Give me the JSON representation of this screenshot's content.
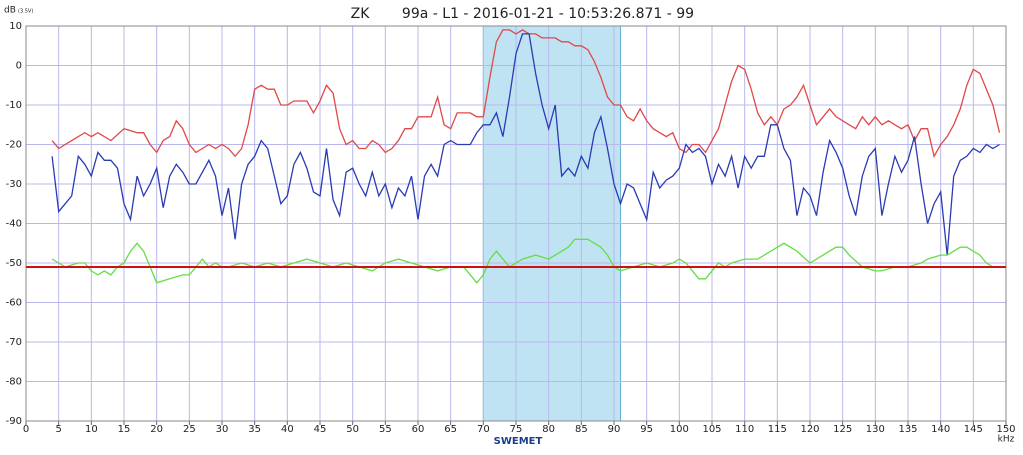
{
  "chart_data": {
    "type": "line",
    "title": "ZK",
    "subtitle": "99a - L1 - 2016-01-21  - 10:53:26.871 - 99",
    "ylabel": "dB",
    "ylabel_note": "(3.5V)",
    "xlabel": "kHz",
    "logo": "SWEMET",
    "xlim": [
      0,
      150
    ],
    "ylim": [
      -90,
      10
    ],
    "xticks": [
      0,
      5,
      10,
      15,
      20,
      25,
      30,
      35,
      40,
      45,
      50,
      55,
      60,
      65,
      70,
      75,
      80,
      85,
      90,
      95,
      100,
      105,
      110,
      115,
      120,
      125,
      130,
      135,
      140,
      145,
      150
    ],
    "yticks": [
      -90,
      -80,
      -70,
      -60,
      -50,
      -40,
      -30,
      -20,
      -10,
      0,
      10
    ],
    "grid": true,
    "highlight": {
      "range": [
        70,
        91
      ],
      "color": "#bfe3f3"
    },
    "reference_line": {
      "value": -51,
      "color": "#cc1111"
    },
    "series": [
      {
        "color": "#e04848",
        "x": [
          4,
          5,
          7,
          9,
          10,
          11,
          13,
          15,
          17,
          18,
          19,
          20,
          21,
          22,
          23,
          24,
          25,
          26,
          27,
          28,
          29,
          30,
          31,
          32,
          33,
          34,
          35,
          36,
          37,
          38,
          39,
          40,
          41,
          42,
          43,
          44,
          45,
          46,
          47,
          48,
          49,
          50,
          51,
          52,
          53,
          54,
          55,
          56,
          57,
          58,
          59,
          60,
          61,
          62,
          63,
          64,
          65,
          66,
          67,
          68,
          69,
          70,
          71,
          72,
          73,
          74,
          75,
          76,
          77,
          78,
          79,
          80,
          81,
          82,
          83,
          84,
          85,
          86,
          87,
          88,
          89,
          90,
          91,
          92,
          93,
          94,
          95,
          96,
          97,
          98,
          99,
          100,
          101,
          102,
          103,
          104,
          105,
          106,
          107,
          108,
          109,
          110,
          111,
          112,
          113,
          114,
          115,
          116,
          117,
          118,
          119,
          120,
          121,
          122,
          123,
          124,
          125,
          126,
          127,
          128,
          129,
          130,
          131,
          132,
          133,
          134,
          135,
          136,
          137,
          138,
          139,
          140,
          141,
          142,
          143,
          144,
          145,
          146,
          147,
          148,
          149
        ],
        "values": [
          -19,
          -21,
          -19,
          -17,
          -18,
          -17,
          -19,
          -16,
          -17,
          -17,
          -20,
          -22,
          -19,
          -18,
          -14,
          -16,
          -20,
          -22,
          -21,
          -20,
          -21,
          -20,
          -21,
          -23,
          -21,
          -15,
          -6,
          -5,
          -6,
          -6,
          -10,
          -10,
          -9,
          -9,
          -9,
          -12,
          -9,
          -5,
          -7,
          -16,
          -20,
          -19,
          -21,
          -21,
          -19,
          -20,
          -22,
          -21,
          -19,
          -16,
          -16,
          -13,
          -13,
          -13,
          -8,
          -15,
          -16,
          -12,
          -12,
          -12,
          -13,
          -13,
          -3,
          6,
          9,
          9,
          8,
          9,
          8,
          8,
          7,
          7,
          7,
          6,
          6,
          5,
          5,
          4,
          1,
          -3,
          -8,
          -10,
          -10,
          -13,
          -14,
          -11,
          -14,
          -16,
          -17,
          -18,
          -17,
          -21,
          -22,
          -20,
          -20,
          -22,
          -19,
          -16,
          -10,
          -4,
          0,
          -1,
          -6,
          -12,
          -15,
          -13,
          -15,
          -11,
          -10,
          -8,
          -5,
          -10,
          -15,
          -13,
          -11,
          -13,
          -14,
          -15,
          -16,
          -13,
          -15,
          -13,
          -15,
          -14,
          -15,
          -16,
          -15,
          -19,
          -16,
          -16,
          -23,
          -20,
          -18,
          -15,
          -11,
          -5,
          -1,
          -2,
          -6,
          -10,
          -17
        ]
      },
      {
        "color": "#2a3bb5",
        "x": [
          4,
          5,
          6,
          7,
          8,
          9,
          10,
          11,
          12,
          13,
          14,
          15,
          16,
          17,
          18,
          19,
          20,
          21,
          22,
          23,
          24,
          25,
          26,
          27,
          28,
          29,
          30,
          31,
          32,
          33,
          34,
          35,
          36,
          37,
          38,
          39,
          40,
          41,
          42,
          43,
          44,
          45,
          46,
          47,
          48,
          49,
          50,
          51,
          52,
          53,
          54,
          55,
          56,
          57,
          58,
          59,
          60,
          61,
          62,
          63,
          64,
          65,
          66,
          67,
          68,
          69,
          70,
          71,
          72,
          73,
          74,
          75,
          76,
          77,
          78,
          79,
          80,
          81,
          82,
          83,
          84,
          85,
          86,
          87,
          88,
          89,
          90,
          91,
          92,
          93,
          94,
          95,
          96,
          97,
          98,
          99,
          100,
          101,
          102,
          103,
          104,
          105,
          106,
          107,
          108,
          109,
          110,
          111,
          112,
          113,
          114,
          115,
          116,
          117,
          118,
          119,
          120,
          121,
          122,
          123,
          124,
          125,
          126,
          127,
          128,
          129,
          130,
          131,
          132,
          133,
          134,
          135,
          136,
          137,
          138,
          139,
          140,
          141,
          142,
          143,
          144,
          145,
          146,
          147,
          148,
          149
        ],
        "values": [
          -23,
          -37,
          -35,
          -33,
          -23,
          -25,
          -28,
          -22,
          -24,
          -24,
          -26,
          -35,
          -39,
          -28,
          -33,
          -30,
          -26,
          -36,
          -28,
          -25,
          -27,
          -30,
          -30,
          -27,
          -24,
          -28,
          -38,
          -31,
          -44,
          -30,
          -25,
          -23,
          -19,
          -21,
          -28,
          -35,
          -33,
          -25,
          -22,
          -26,
          -32,
          -33,
          -21,
          -34,
          -38,
          -27,
          -26,
          -30,
          -33,
          -27,
          -33,
          -30,
          -36,
          -31,
          -33,
          -28,
          -39,
          -28,
          -25,
          -28,
          -20,
          -19,
          -20,
          -20,
          -20,
          -17,
          -15,
          -15,
          -12,
          -18,
          -8,
          3,
          8,
          8,
          -2,
          -10,
          -16,
          -10,
          -28,
          -26,
          -28,
          -23,
          -26,
          -17,
          -13,
          -21,
          -30,
          -35,
          -30,
          -31,
          -35,
          -39,
          -27,
          -31,
          -29,
          -28,
          -26,
          -20,
          -22,
          -21,
          -23,
          -30,
          -25,
          -28,
          -23,
          -31,
          -23,
          -26,
          -23,
          -23,
          -15,
          -15,
          -21,
          -24,
          -38,
          -31,
          -33,
          -38,
          -27,
          -19,
          -22,
          -26,
          -33,
          -38,
          -28,
          -23,
          -21,
          -38,
          -30,
          -23,
          -27,
          -24,
          -18,
          -30,
          -40,
          -35,
          -32,
          -48,
          -28,
          -24,
          -23,
          -21,
          -22,
          -20,
          -21,
          -20
        ]
      },
      {
        "color": "#66dd44",
        "x": [
          4,
          5,
          6,
          8,
          9,
          10,
          11,
          12,
          13,
          14,
          15,
          16,
          17,
          18,
          19,
          20,
          22,
          24,
          25,
          26,
          27,
          28,
          29,
          30,
          31,
          33,
          35,
          37,
          39,
          41,
          43,
          45,
          47,
          49,
          51,
          53,
          55,
          57,
          59,
          61,
          63,
          65,
          67,
          68,
          69,
          70,
          71,
          72,
          73,
          74,
          76,
          78,
          80,
          82,
          83,
          84,
          85,
          86,
          87,
          88,
          89,
          90,
          91,
          93,
          95,
          97,
          99,
          100,
          101,
          102,
          103,
          104,
          105,
          106,
          107,
          108,
          110,
          112,
          113,
          115,
          116,
          117,
          118,
          120,
          121,
          122,
          124,
          125,
          126,
          128,
          130,
          131,
          133,
          135,
          137,
          138,
          140,
          141,
          143,
          144,
          145,
          146,
          147,
          148
        ],
        "values": [
          -49,
          -50,
          -51,
          -50,
          -50,
          -52,
          -53,
          -52,
          -53,
          -51,
          -50,
          -47,
          -45,
          -47,
          -51,
          -55,
          -54,
          -53,
          -53,
          -51,
          -49,
          -51,
          -50,
          -51,
          -51,
          -50,
          -51,
          -50,
          -51,
          -50,
          -49,
          -50,
          -51,
          -50,
          -51,
          -52,
          -50,
          -49,
          -50,
          -51,
          -52,
          -51,
          -51,
          -53,
          -55,
          -53,
          -49,
          -47,
          -49,
          -51,
          -49,
          -48,
          -49,
          -47,
          -46,
          -44,
          -44,
          -44,
          -45,
          -46,
          -48,
          -51,
          -52,
          -51,
          -50,
          -51,
          -50,
          -49,
          -50,
          -52,
          -54,
          -54,
          -52,
          -50,
          -51,
          -50,
          -49,
          -49,
          -48,
          -46,
          -45,
          -46,
          -47,
          -50,
          -49,
          -48,
          -46,
          -46,
          -48,
          -51,
          -52,
          -52,
          -51,
          -51,
          -50,
          -49,
          -48,
          -48,
          -46,
          -46,
          -47,
          -48,
          -50,
          -51
        ]
      }
    ]
  }
}
